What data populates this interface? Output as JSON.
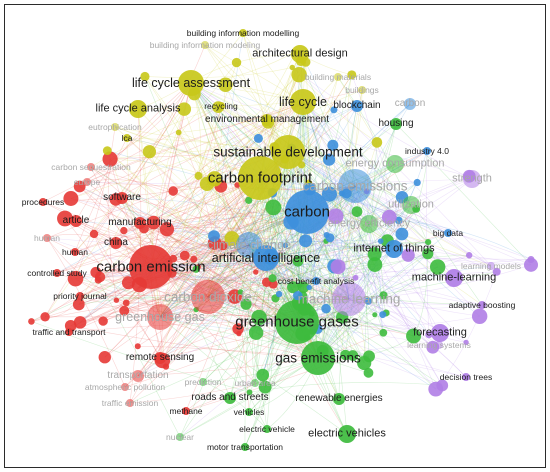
{
  "colors": {
    "red": "#e53935",
    "yellow": "#c8c81a",
    "green": "#3dbb3d",
    "blue": "#3d8fdc",
    "purple": "#b07ee6"
  },
  "nodes": [
    {
      "label": "building information modelling",
      "cluster": "yellow",
      "weight": 1,
      "faint": false
    },
    {
      "label": "building information modeling",
      "cluster": "yellow",
      "weight": 1,
      "faint": true
    },
    {
      "label": "architectural design",
      "cluster": "yellow",
      "weight": 3,
      "faint": false
    },
    {
      "label": "building materials",
      "cluster": "yellow",
      "weight": 1,
      "faint": true
    },
    {
      "label": "buildings",
      "cluster": "yellow",
      "weight": 1,
      "faint": true
    },
    {
      "label": "life cycle assessment",
      "cluster": "yellow",
      "weight": 4,
      "faint": false
    },
    {
      "label": "life cycle",
      "cluster": "yellow",
      "weight": 4,
      "faint": false
    },
    {
      "label": "blockchain",
      "cluster": "blue",
      "weight": 2,
      "faint": false
    },
    {
      "label": "carbon",
      "cluster": "blue",
      "weight": 2,
      "faint": true
    },
    {
      "label": "recycling",
      "cluster": "yellow",
      "weight": 1,
      "faint": false
    },
    {
      "label": "life cycle analysis",
      "cluster": "yellow",
      "weight": 3,
      "faint": false
    },
    {
      "label": "environmental management",
      "cluster": "yellow",
      "weight": 2,
      "faint": false
    },
    {
      "label": "housing",
      "cluster": "green",
      "weight": 2,
      "faint": false
    },
    {
      "label": "eutrophication",
      "cluster": "yellow",
      "weight": 1,
      "faint": true
    },
    {
      "label": "lca",
      "cluster": "yellow",
      "weight": 1,
      "faint": false
    },
    {
      "label": "industry 4.0",
      "cluster": "blue",
      "weight": 1,
      "faint": false
    },
    {
      "label": "sustainable development",
      "cluster": "yellow",
      "weight": 5,
      "faint": false
    },
    {
      "label": "energy consumption",
      "cluster": "green",
      "weight": 3,
      "faint": true
    },
    {
      "label": "carbon sequestration",
      "cluster": "red",
      "weight": 1,
      "faint": true
    },
    {
      "label": "europe",
      "cluster": "red",
      "weight": 1,
      "faint": true
    },
    {
      "label": "carbon footprint",
      "cluster": "yellow",
      "weight": 6,
      "faint": false
    },
    {
      "label": "carbon emissions",
      "cluster": "blue",
      "weight": 5,
      "faint": true
    },
    {
      "label": "strength",
      "cluster": "purple",
      "weight": 3,
      "faint": true
    },
    {
      "label": "software",
      "cluster": "red",
      "weight": 2,
      "faint": false
    },
    {
      "label": "procedures",
      "cluster": "red",
      "weight": 1,
      "faint": false
    },
    {
      "label": "utilization",
      "cluster": "green",
      "weight": 3,
      "faint": true
    },
    {
      "label": "article",
      "cluster": "red",
      "weight": 2,
      "faint": false
    },
    {
      "label": "manufacturing",
      "cluster": "red",
      "weight": 2,
      "faint": false
    },
    {
      "label": "carbon",
      "cluster": "blue",
      "weight": 6,
      "faint": false
    },
    {
      "label": "energy efficiency",
      "cluster": "green",
      "weight": 3,
      "faint": true
    },
    {
      "label": "big data",
      "cluster": "blue",
      "weight": 1,
      "faint": false
    },
    {
      "label": "human",
      "cluster": "red",
      "weight": 1,
      "faint": true
    },
    {
      "label": "human",
      "cluster": "red",
      "weight": 1,
      "faint": false
    },
    {
      "label": "china",
      "cluster": "red",
      "weight": 2,
      "faint": false
    },
    {
      "label": "climate change",
      "cluster": "blue",
      "weight": 4,
      "faint": true
    },
    {
      "label": "internet of things",
      "cluster": "blue",
      "weight": 3,
      "faint": false
    },
    {
      "label": "learning models",
      "cluster": "purple",
      "weight": 1,
      "faint": true
    },
    {
      "label": "carbon emission",
      "cluster": "red",
      "weight": 6,
      "faint": false
    },
    {
      "label": "artificial intelligence",
      "cluster": "blue",
      "weight": 4,
      "faint": false
    },
    {
      "label": "machine-learning",
      "cluster": "purple",
      "weight": 3,
      "faint": false
    },
    {
      "label": "controlled study",
      "cluster": "red",
      "weight": 1,
      "faint": false
    },
    {
      "label": "cost benefit analysis",
      "cluster": "blue",
      "weight": 1,
      "faint": false
    },
    {
      "label": "priority journal",
      "cluster": "red",
      "weight": 1,
      "faint": false
    },
    {
      "label": "carbon dioxide",
      "cluster": "red",
      "weight": 5,
      "faint": true
    },
    {
      "label": "machine learning",
      "cluster": "purple",
      "weight": 5,
      "faint": true
    },
    {
      "label": "adaptive boosting",
      "cluster": "purple",
      "weight": 1,
      "faint": false
    },
    {
      "label": "greenhouse gas",
      "cluster": "red",
      "weight": 4,
      "faint": true
    },
    {
      "label": "greenhouse gases",
      "cluster": "green",
      "weight": 6,
      "faint": false
    },
    {
      "label": "traffic and transport",
      "cluster": "red",
      "weight": 1,
      "faint": false
    },
    {
      "label": "forecasting",
      "cluster": "purple",
      "weight": 3,
      "faint": false
    },
    {
      "label": "learning systems",
      "cluster": "purple",
      "weight": 1,
      "faint": true
    },
    {
      "label": "remote sensing",
      "cluster": "red",
      "weight": 2,
      "faint": false
    },
    {
      "label": "gas emissions",
      "cluster": "green",
      "weight": 5,
      "faint": false
    },
    {
      "label": "transportation",
      "cluster": "red",
      "weight": 2,
      "faint": true
    },
    {
      "label": "decision trees",
      "cluster": "purple",
      "weight": 1,
      "faint": false
    },
    {
      "label": "atmospheric pollution",
      "cluster": "red",
      "weight": 1,
      "faint": true
    },
    {
      "label": "prediction",
      "cluster": "green",
      "weight": 1,
      "faint": true
    },
    {
      "label": "urban area",
      "cluster": "green",
      "weight": 1,
      "faint": true
    },
    {
      "label": "traffic emission",
      "cluster": "red",
      "weight": 1,
      "faint": true
    },
    {
      "label": "roads and streets",
      "cluster": "green",
      "weight": 2,
      "faint": false
    },
    {
      "label": "renewable energies",
      "cluster": "green",
      "weight": 2,
      "faint": false
    },
    {
      "label": "methane",
      "cluster": "red",
      "weight": 1,
      "faint": false
    },
    {
      "label": "vehicles",
      "cluster": "green",
      "weight": 1,
      "faint": false
    },
    {
      "label": "electric vehicle",
      "cluster": "green",
      "weight": 1,
      "faint": false
    },
    {
      "label": "electric vehicles",
      "cluster": "green",
      "weight": 3,
      "faint": false
    },
    {
      "label": "motor transportation",
      "cluster": "green",
      "weight": 1,
      "faint": false
    },
    {
      "label": "nuclear",
      "cluster": "green",
      "weight": 1,
      "faint": true
    }
  ]
}
